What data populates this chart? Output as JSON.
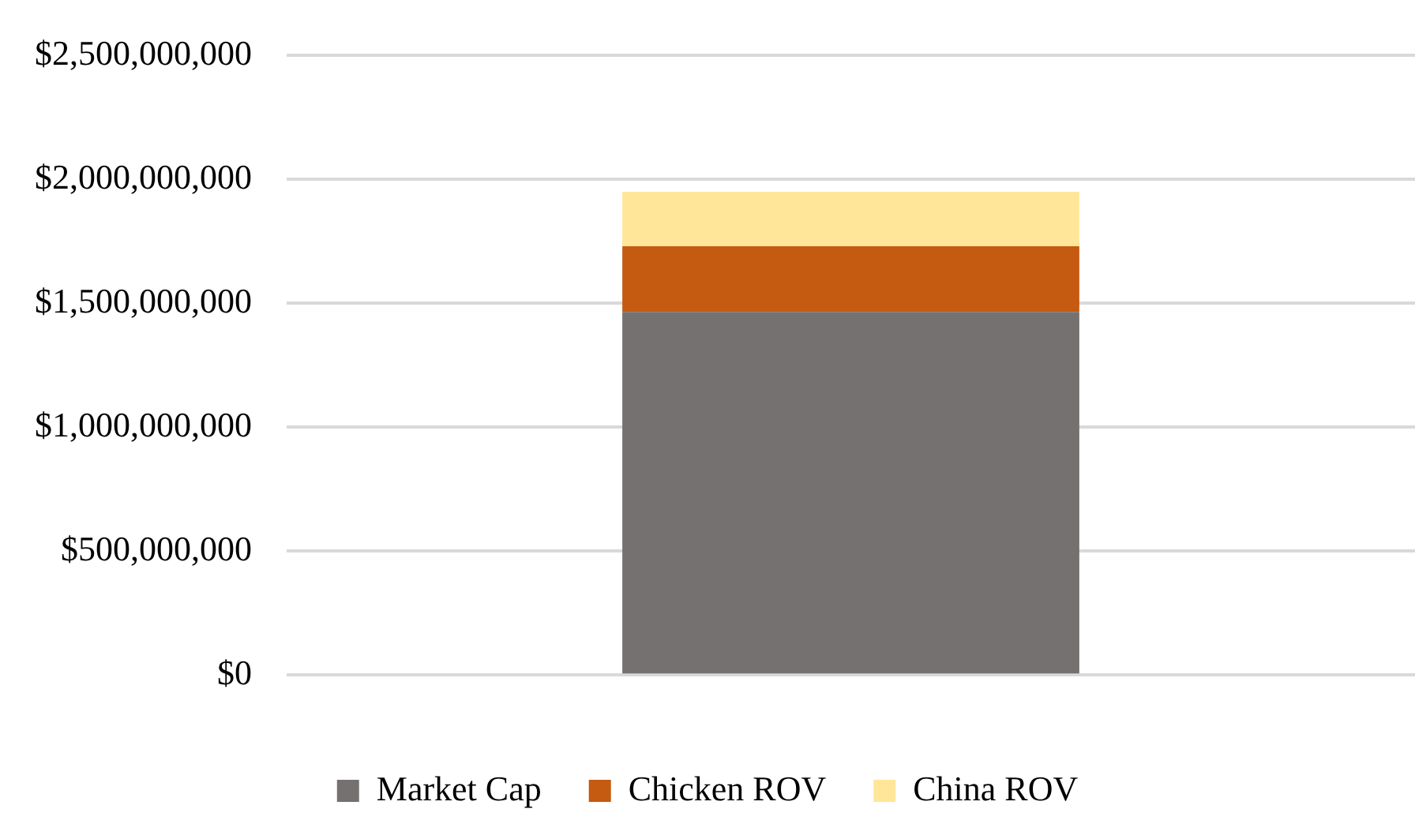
{
  "chart_data": {
    "type": "bar",
    "stacked": true,
    "categories": [
      null
    ],
    "series": [
      {
        "name": "Market Cap",
        "color": "#767171",
        "values": [
          1465000000
        ]
      },
      {
        "name": "Chicken ROV",
        "color": "#c55a11",
        "values": [
          265000000
        ]
      },
      {
        "name": "China ROV",
        "color": "#ffe699",
        "values": [
          220000000
        ]
      }
    ],
    "ylim": [
      0,
      2500000000
    ],
    "yticks": [
      {
        "value": 0,
        "label": "$0"
      },
      {
        "value": 500000000,
        "label": "$500,000,000"
      },
      {
        "value": 1000000000,
        "label": "$1,000,000,000"
      },
      {
        "value": 1500000000,
        "label": "$1,500,000,000"
      },
      {
        "value": 2000000000,
        "label": "$2,000,000,000"
      },
      {
        "value": 2500000000,
        "label": "$2,500,000,000"
      }
    ],
    "grid": "y",
    "legend": "bottom"
  }
}
